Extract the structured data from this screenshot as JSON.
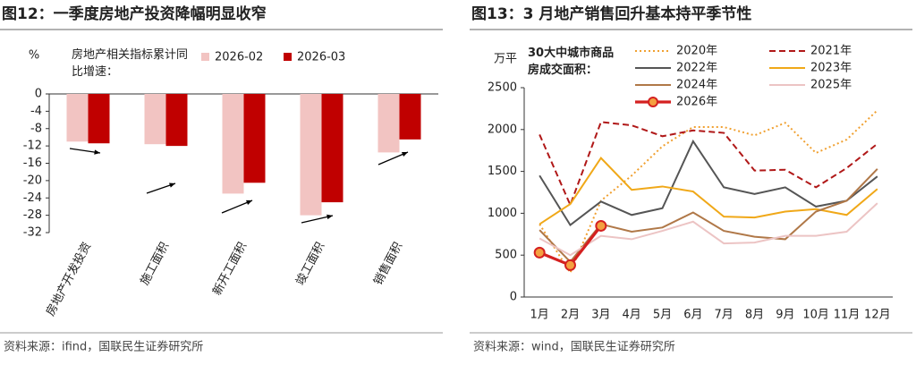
{
  "chart_data": [
    {
      "type": "bar",
      "title": "图12：一季度房地产投资降幅明显收窄",
      "y_unit": "%",
      "note": "房地产相关指标累计同比增速：",
      "categories": [
        "房地产开发投资",
        "施工面积",
        "新开工面积",
        "竣工面积",
        "销售面积"
      ],
      "series": [
        {
          "name": "2026-02",
          "color": "#f2c4c2",
          "values": [
            -11.0,
            -11.6,
            -23.0,
            -28.0,
            -13.5
          ]
        },
        {
          "name": "2026-03",
          "color": "#c00000",
          "values": [
            -11.4,
            -12.0,
            -20.5,
            -25.0,
            -10.5
          ]
        }
      ],
      "ylim": [
        -32,
        0
      ],
      "yticks": [
        0,
        -4,
        -8,
        -12,
        -16,
        -20,
        -24,
        -28,
        -32
      ],
      "source": "资料来源：ifind，国联民生证券研究所"
    },
    {
      "type": "line",
      "title": "图13：3 月地产销售回升基本持平季节性",
      "y_unit": "万平",
      "note": "30大中城市商品房成交面积：",
      "categories": [
        "1月",
        "2月",
        "3月",
        "4月",
        "5月",
        "6月",
        "7月",
        "8月",
        "9月",
        "10月",
        "11月",
        "12月"
      ],
      "series": [
        {
          "name": "2020年",
          "color": "#f0a030",
          "style": "dotted",
          "values": [
            870,
            290,
            1150,
            1450,
            1800,
            2030,
            2030,
            1930,
            2080,
            1720,
            1880,
            2230
          ]
        },
        {
          "name": "2021年",
          "color": "#b01818",
          "style": "dashed",
          "values": [
            1940,
            1100,
            2090,
            2050,
            1920,
            1990,
            1960,
            1510,
            1520,
            1310,
            1540,
            1830
          ]
        },
        {
          "name": "2022年",
          "color": "#555555",
          "style": "solid",
          "values": [
            1450,
            860,
            1140,
            980,
            1060,
            1860,
            1310,
            1230,
            1310,
            1080,
            1150,
            1440
          ]
        },
        {
          "name": "2023年",
          "color": "#f0a818",
          "style": "solid",
          "values": [
            870,
            1110,
            1660,
            1280,
            1320,
            1260,
            960,
            950,
            1020,
            1050,
            980,
            1290
          ]
        },
        {
          "name": "2024年",
          "color": "#b07848",
          "style": "solid",
          "values": [
            800,
            420,
            870,
            780,
            830,
            1010,
            790,
            720,
            690,
            1020,
            1150,
            1530
          ]
        },
        {
          "name": "2025年",
          "color": "#ecc4c4",
          "style": "solid",
          "values": [
            700,
            500,
            730,
            690,
            790,
            900,
            640,
            650,
            730,
            730,
            780,
            1120
          ]
        },
        {
          "name": "2026年",
          "color": "#d42020",
          "style": "marker",
          "values": [
            530,
            380,
            850,
            null,
            null,
            null,
            null,
            null,
            null,
            null,
            null,
            null
          ]
        }
      ],
      "ylim": [
        0,
        2500
      ],
      "yticks": [
        0,
        500,
        1000,
        1500,
        2000,
        2500
      ],
      "source": "资料来源：wind，国联民生证券研究所"
    }
  ]
}
